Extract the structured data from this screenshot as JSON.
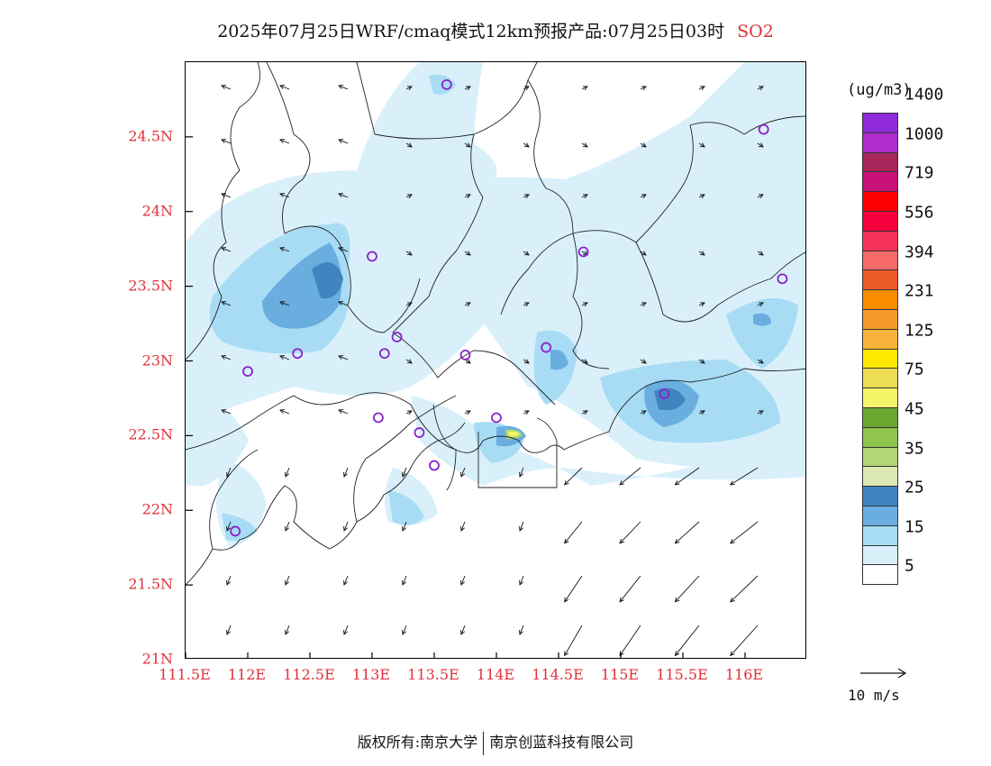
{
  "title": "2025年07月25日WRF/cmaq模式12km预报产品:07月25日03时",
  "pollutant": "SO2",
  "map": {
    "lat_labels": [
      "24.5N",
      "24N",
      "23.5N",
      "23N",
      "22.5N",
      "22N",
      "21.5N",
      "21N"
    ],
    "lat_values": [
      24.5,
      24.0,
      23.5,
      23.0,
      22.5,
      22.0,
      21.5,
      21.0
    ],
    "lon_labels": [
      "111.5E",
      "112E",
      "112.5E",
      "113E",
      "113.5E",
      "114E",
      "114.5E",
      "115E",
      "115.5E",
      "116E"
    ],
    "lon_values": [
      111.5,
      112.0,
      112.5,
      113.0,
      113.5,
      114.0,
      114.5,
      115.0,
      115.5,
      116.0
    ],
    "lat_range": [
      21.0,
      25.0
    ],
    "lon_range": [
      111.5,
      116.5
    ],
    "label_color": "#e0303a",
    "stations": [
      {
        "lon": 113.6,
        "lat": 24.85
      },
      {
        "lon": 116.15,
        "lat": 24.55
      },
      {
        "lon": 113.0,
        "lat": 23.7
      },
      {
        "lon": 114.7,
        "lat": 23.73
      },
      {
        "lon": 116.3,
        "lat": 23.55
      },
      {
        "lon": 112.4,
        "lat": 23.05
      },
      {
        "lon": 112.0,
        "lat": 22.93
      },
      {
        "lon": 113.1,
        "lat": 23.05
      },
      {
        "lon": 113.2,
        "lat": 23.16
      },
      {
        "lon": 113.75,
        "lat": 23.04
      },
      {
        "lon": 114.4,
        "lat": 23.09
      },
      {
        "lon": 115.35,
        "lat": 22.78
      },
      {
        "lon": 113.05,
        "lat": 22.62
      },
      {
        "lon": 113.38,
        "lat": 22.52
      },
      {
        "lon": 114.0,
        "lat": 22.62
      },
      {
        "lon": 113.5,
        "lat": 22.3
      },
      {
        "lon": 111.9,
        "lat": 21.86
      }
    ]
  },
  "colorbar": {
    "unit": "(ug/m3)",
    "colors": [
      "#ffffff",
      "#d9f0fb",
      "#a8dcf5",
      "#6aaee0",
      "#3f85c0",
      "#dce9b6",
      "#b2d673",
      "#8fc44d",
      "#6aa832",
      "#f5f56a",
      "#eddc55",
      "#ffe800",
      "#f8b43a",
      "#f49a2a",
      "#fa8c00",
      "#ec5a2a",
      "#f86b6b",
      "#f5335a",
      "#f8003e",
      "#ff0000",
      "#c8127a",
      "#a8275a",
      "#b02ccc",
      "#8e2ad8"
    ],
    "labels": [
      "5",
      "15",
      "25",
      "35",
      "45",
      "75",
      "125",
      "231",
      "394",
      "556",
      "719",
      "1000",
      "1400"
    ]
  },
  "wind_scale": {
    "label": "10 m/s"
  },
  "footer": {
    "left": "版权所有:南京大学",
    "right": "南京创蓝科技有限公司"
  }
}
